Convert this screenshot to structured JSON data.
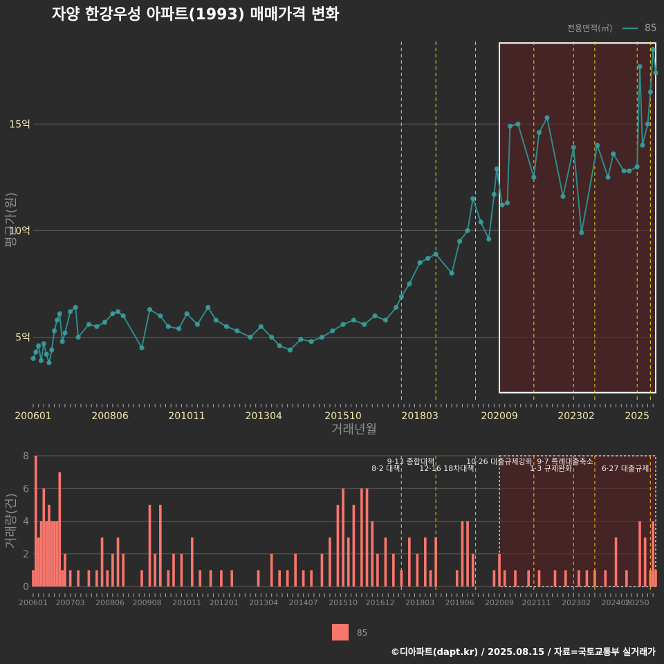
{
  "title": "자양 한강우성 아파트(1993) 매매가격 변화",
  "caption": "©디아파트(dapt.kr) / 2025.08.15 / 자료=국토교통부 실거래가",
  "legend_top": {
    "title": "전용면적(㎡)",
    "label": "85"
  },
  "legend_bottom": {
    "label": "85"
  },
  "colors": {
    "line": "#2e8b8b",
    "point": "#3aa3a0",
    "bar": "#f8766d",
    "highlight": "#5a1f1f",
    "vline_top": "#e6d21a",
    "vline_bottom": "#e6a21a",
    "background": "#2b2b2b"
  },
  "events": [
    {
      "date": "2017-08",
      "label": "8·2 대책"
    },
    {
      "date": "2018-09",
      "label": "9·13 종합대책"
    },
    {
      "date": "2019-12",
      "label": "12·16 18차대책"
    },
    {
      "date": "2021-10",
      "label": "10·26 대출규제강화"
    },
    {
      "date": "2023-01",
      "label": "1·3 규제완화"
    },
    {
      "date": "2023-09",
      "label": "9·7 특례대출축소"
    },
    {
      "date": "2025-06",
      "label": "6·27 대출규제"
    }
  ],
  "chart_data": [
    {
      "type": "line",
      "title": "자양 한강우성 아파트(1993) 매매가격 변화",
      "xlabel": "거래년월",
      "ylabel": "평균가(원)",
      "x_ticks": [
        "200601",
        "200806",
        "201011",
        "201304",
        "201510",
        "201803",
        "202009",
        "202302",
        "2025"
      ],
      "y_ticks": [
        {
          "value": 5,
          "label": "5억"
        },
        {
          "value": 10,
          "label": "10억"
        },
        {
          "value": 15,
          "label": "15억"
        }
      ],
      "ylim": [
        2,
        19
      ],
      "xlim": [
        "2006-01",
        "2025-08"
      ],
      "highlight_range": [
        "2020-09",
        "2025-08"
      ],
      "vlines": [
        "2017-08",
        "2018-09",
        "2019-12",
        "2021-10",
        "2023-01",
        "2023-09",
        "2025-01",
        "2025-06"
      ],
      "series": [
        {
          "name": "85",
          "points": [
            [
              "2006-01",
              4.0
            ],
            [
              "2006-02",
              4.3
            ],
            [
              "2006-03",
              4.6
            ],
            [
              "2006-04",
              3.9
            ],
            [
              "2006-05",
              4.7
            ],
            [
              "2006-06",
              4.2
            ],
            [
              "2006-07",
              3.8
            ],
            [
              "2006-08",
              4.4
            ],
            [
              "2006-09",
              5.3
            ],
            [
              "2006-10",
              5.8
            ],
            [
              "2006-11",
              6.1
            ],
            [
              "2006-12",
              4.8
            ],
            [
              "2007-01",
              5.2
            ],
            [
              "2007-03",
              6.2
            ],
            [
              "2007-05",
              6.4
            ],
            [
              "2007-06",
              5.0
            ],
            [
              "2007-10",
              5.6
            ],
            [
              "2008-01",
              5.5
            ],
            [
              "2008-04",
              5.7
            ],
            [
              "2008-07",
              6.1
            ],
            [
              "2008-09",
              6.2
            ],
            [
              "2008-11",
              6.0
            ],
            [
              "2009-06",
              4.5
            ],
            [
              "2009-09",
              6.3
            ],
            [
              "2010-01",
              6.0
            ],
            [
              "2010-04",
              5.5
            ],
            [
              "2010-08",
              5.4
            ],
            [
              "2010-11",
              6.1
            ],
            [
              "2011-03",
              5.6
            ],
            [
              "2011-07",
              6.4
            ],
            [
              "2011-10",
              5.8
            ],
            [
              "2012-02",
              5.5
            ],
            [
              "2012-06",
              5.3
            ],
            [
              "2012-11",
              5.0
            ],
            [
              "2013-03",
              5.5
            ],
            [
              "2013-07",
              5.0
            ],
            [
              "2013-10",
              4.6
            ],
            [
              "2014-02",
              4.4
            ],
            [
              "2014-06",
              4.9
            ],
            [
              "2014-10",
              4.8
            ],
            [
              "2015-02",
              5.0
            ],
            [
              "2015-06",
              5.3
            ],
            [
              "2015-10",
              5.6
            ],
            [
              "2016-02",
              5.8
            ],
            [
              "2016-06",
              5.6
            ],
            [
              "2016-10",
              6.0
            ],
            [
              "2017-02",
              5.8
            ],
            [
              "2017-06",
              6.4
            ],
            [
              "2017-08",
              6.9
            ],
            [
              "2017-11",
              7.5
            ],
            [
              "2018-03",
              8.5
            ],
            [
              "2018-06",
              8.7
            ],
            [
              "2018-09",
              8.9
            ],
            [
              "2019-03",
              8.0
            ],
            [
              "2019-06",
              9.5
            ],
            [
              "2019-09",
              10.0
            ],
            [
              "2019-11",
              11.5
            ],
            [
              "2020-02",
              10.4
            ],
            [
              "2020-05",
              9.6
            ],
            [
              "2020-07",
              11.7
            ],
            [
              "2020-08",
              12.9
            ],
            [
              "2020-10",
              11.2
            ],
            [
              "2020-12",
              11.3
            ],
            [
              "2021-01",
              14.9
            ],
            [
              "2021-04",
              15.0
            ],
            [
              "2021-10",
              12.5
            ],
            [
              "2021-12",
              14.6
            ],
            [
              "2022-03",
              15.3
            ],
            [
              "2022-09",
              11.6
            ],
            [
              "2023-01",
              13.9
            ],
            [
              "2023-04",
              9.9
            ],
            [
              "2023-10",
              14.0
            ],
            [
              "2024-02",
              12.5
            ],
            [
              "2024-04",
              13.6
            ],
            [
              "2024-08",
              12.8
            ],
            [
              "2024-10",
              12.8
            ],
            [
              "2025-01",
              13.0
            ],
            [
              "2025-02",
              17.7
            ],
            [
              "2025-03",
              14.0
            ],
            [
              "2025-05",
              15.0
            ],
            [
              "2025-06",
              16.5
            ],
            [
              "2025-07",
              18.5
            ],
            [
              "2025-08",
              17.4
            ]
          ]
        }
      ]
    },
    {
      "type": "bar",
      "xlabel": "",
      "ylabel": "거래량(건)",
      "x_ticks": [
        "200601",
        "200703",
        "200806",
        "200908",
        "201011",
        "201201",
        "201304",
        "201407",
        "201510",
        "201612",
        "201803",
        "201906",
        "202009",
        "202111",
        "202302",
        "202405",
        "20250"
      ],
      "y_ticks": [
        0,
        2,
        4,
        6,
        8
      ],
      "ylim": [
        0,
        8
      ],
      "highlight_range": [
        "2020-09",
        "2025-08"
      ],
      "series": [
        {
          "name": "85",
          "values": [
            [
              "2006-01",
              1
            ],
            [
              "2006-02",
              8
            ],
            [
              "2006-03",
              3
            ],
            [
              "2006-04",
              4
            ],
            [
              "2006-05",
              6
            ],
            [
              "2006-06",
              4
            ],
            [
              "2006-07",
              5
            ],
            [
              "2006-08",
              4
            ],
            [
              "2006-09",
              4
            ],
            [
              "2006-10",
              4
            ],
            [
              "2006-11",
              7
            ],
            [
              "2006-12",
              1
            ],
            [
              "2007-01",
              2
            ],
            [
              "2007-03",
              1
            ],
            [
              "2007-06",
              1
            ],
            [
              "2007-10",
              1
            ],
            [
              "2008-01",
              1
            ],
            [
              "2008-03",
              3
            ],
            [
              "2008-05",
              1
            ],
            [
              "2008-07",
              2
            ],
            [
              "2008-09",
              3
            ],
            [
              "2008-11",
              2
            ],
            [
              "2009-06",
              1
            ],
            [
              "2009-09",
              5
            ],
            [
              "2009-11",
              2
            ],
            [
              "2010-01",
              5
            ],
            [
              "2010-04",
              1
            ],
            [
              "2010-06",
              2
            ],
            [
              "2010-09",
              2
            ],
            [
              "2011-01",
              3
            ],
            [
              "2011-04",
              1
            ],
            [
              "2011-08",
              1
            ],
            [
              "2011-12",
              1
            ],
            [
              "2012-04",
              1
            ],
            [
              "2013-02",
              1
            ],
            [
              "2013-07",
              2
            ],
            [
              "2013-10",
              1
            ],
            [
              "2014-01",
              1
            ],
            [
              "2014-04",
              2
            ],
            [
              "2014-07",
              1
            ],
            [
              "2014-10",
              1
            ],
            [
              "2015-02",
              2
            ],
            [
              "2015-05",
              3
            ],
            [
              "2015-08",
              5
            ],
            [
              "2015-10",
              6
            ],
            [
              "2015-12",
              3
            ],
            [
              "2016-02",
              5
            ],
            [
              "2016-05",
              6
            ],
            [
              "2016-07",
              6
            ],
            [
              "2016-09",
              4
            ],
            [
              "2016-11",
              2
            ],
            [
              "2017-02",
              3
            ],
            [
              "2017-05",
              2
            ],
            [
              "2017-08",
              1
            ],
            [
              "2017-11",
              3
            ],
            [
              "2018-02",
              2
            ],
            [
              "2018-05",
              3
            ],
            [
              "2018-07",
              1
            ],
            [
              "2018-09",
              3
            ],
            [
              "2019-05",
              1
            ],
            [
              "2019-07",
              4
            ],
            [
              "2019-09",
              4
            ],
            [
              "2019-11",
              2
            ],
            [
              "2020-07",
              1
            ],
            [
              "2020-09",
              2
            ],
            [
              "2020-11",
              1
            ],
            [
              "2021-03",
              1
            ],
            [
              "2021-08",
              1
            ],
            [
              "2021-12",
              1
            ],
            [
              "2022-06",
              1
            ],
            [
              "2022-10",
              1
            ],
            [
              "2023-03",
              1
            ],
            [
              "2023-06",
              1
            ],
            [
              "2023-09",
              1
            ],
            [
              "2024-01",
              1
            ],
            [
              "2024-05",
              3
            ],
            [
              "2024-09",
              1
            ],
            [
              "2025-02",
              4
            ],
            [
              "2025-04",
              3
            ],
            [
              "2025-06",
              1
            ],
            [
              "2025-07",
              4
            ],
            [
              "2025-08",
              1
            ]
          ]
        }
      ]
    }
  ]
}
